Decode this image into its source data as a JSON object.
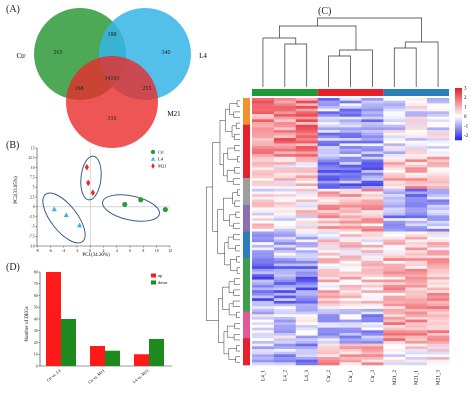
{
  "panels": {
    "a_label": "(A)",
    "b_label": "(B)",
    "c_label": "(C)",
    "d_label": "(D)"
  },
  "venn": {
    "sets": [
      {
        "label": "Ctr",
        "color": "#2f9a3a"
      },
      {
        "label": "L4",
        "color": "#35b5e8"
      },
      {
        "label": "M21",
        "color": "#ea2a2a"
      }
    ],
    "counts": {
      "ctr_only": "265",
      "ctr_l4": "188",
      "l4_only": "340",
      "all": "14191",
      "ctr_m21": "168",
      "l4_m21": "255",
      "m21_only": "316"
    }
  },
  "pca": {
    "xlabel": "PC1(34.30%)",
    "ylabel": "PC2(33.95%)",
    "legend": [
      {
        "label": "Ctr",
        "color": "#2f9a3a",
        "shape": "circle"
      },
      {
        "label": "L4",
        "color": "#35b5e8",
        "shape": "triangle"
      },
      {
        "label": "M21",
        "color": "#ea2a2a",
        "shape": "diamond"
      }
    ],
    "x_ticks": [
      "-8",
      "-6",
      "-4",
      "-2",
      "0",
      "2",
      "4",
      "6",
      "8",
      "10",
      "12"
    ],
    "y_ticks": [
      "15",
      "12.5",
      "10",
      "7.5",
      "5",
      "2.5",
      "0",
      "-2.5",
      "-5",
      "-7.5",
      "-10"
    ]
  },
  "chart_data": [
    {
      "type": "scatter",
      "xlabel": "PC1(34.30%)",
      "ylabel": "PC2(33.95%)",
      "xlim": [
        -8,
        12
      ],
      "ylim": [
        -10,
        15
      ],
      "series": [
        {
          "name": "Ctr",
          "color": "#2f9a3a",
          "x": [
            5.2,
            7.6,
            11.3
          ],
          "y": [
            0.6,
            1.8,
            -0.7
          ]
        },
        {
          "name": "L4",
          "color": "#35b5e8",
          "x": [
            -5.4,
            -3.6,
            -1.6
          ],
          "y": [
            -0.6,
            -2.1,
            -4.7
          ]
        },
        {
          "name": "M21",
          "color": "#ea2a2a",
          "x": [
            -0.5,
            -0.3,
            0.4
          ],
          "y": [
            10.1,
            6.1,
            3.6
          ]
        }
      ]
    },
    {
      "type": "bar",
      "ylabel": "Number of DEGs",
      "ylim": [
        0,
        80
      ],
      "y_ticks": [
        "0",
        "10",
        "20",
        "30",
        "40",
        "50",
        "60",
        "70",
        "80"
      ],
      "categories": [
        "Ctr vs. L4",
        "Ctr vs. M21",
        "L4 vs. M21"
      ],
      "series": [
        {
          "name": "up",
          "color": "#ff1a1a",
          "values": [
            80,
            17,
            10
          ]
        },
        {
          "name": "down",
          "color": "#1e8a1e",
          "values": [
            40,
            13,
            23
          ]
        }
      ]
    },
    {
      "type": "heatmap",
      "columns": [
        "L4_1",
        "L4_2",
        "L4_3",
        "Ctr_2",
        "Ctr_1",
        "Ctr_3",
        "M21_2",
        "M21_1",
        "M21_3"
      ],
      "group_colors": [
        "#1f9a3a",
        "#e8202a",
        "#2a7fb8"
      ],
      "colorbar_ticks": [
        "3",
        "2",
        "1",
        "0",
        "-1",
        "-2"
      ],
      "colorbar_colors": [
        "#e8202a",
        "#ffffff",
        "#2a2ae8"
      ],
      "zlim": [
        -2.5,
        3
      ]
    }
  ]
}
